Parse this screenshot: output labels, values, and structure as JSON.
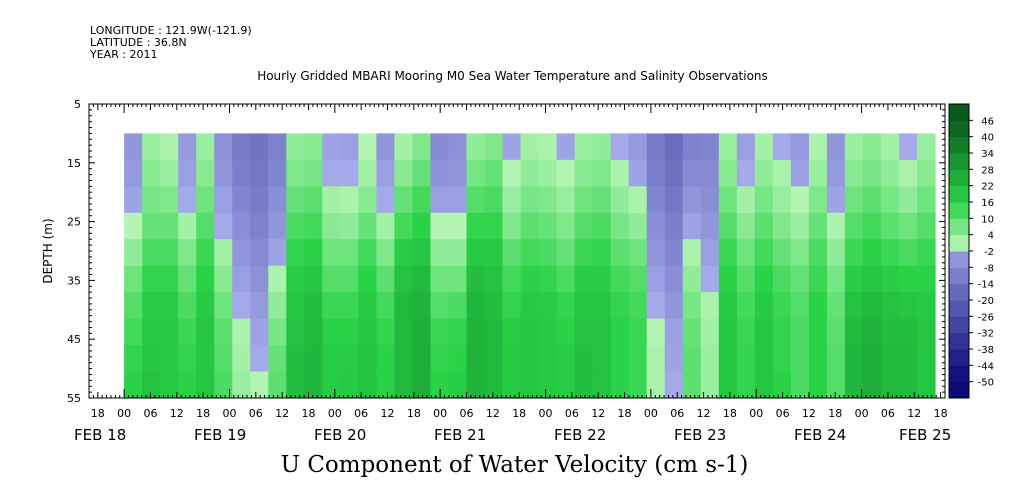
{
  "header": {
    "longitude": "LONGITUDE : 121.9W(-121.9)",
    "latitude": "LATITUDE : 36.8N",
    "year": "YEAR : 2011"
  },
  "chart_data": {
    "type": "heatmap",
    "title": "Hourly Gridded MBARI Mooring M0 Sea Water Temperature and Salinity Observations",
    "xlabel": "U Component of Water Velocity (cm s-1)",
    "ylabel": "DEPTH (m)",
    "y_range": [
      5,
      55
    ],
    "y_inverted": true,
    "y_ticks": [
      5,
      15,
      25,
      35,
      45,
      55
    ],
    "data_depth_range": [
      10,
      55
    ],
    "x_range": [
      "2011-02-17T16:00",
      "2011-02-25T19:00"
    ],
    "x_hour_ticks": [
      "18",
      "00",
      "06",
      "12",
      "18",
      "00",
      "06",
      "12",
      "18",
      "00",
      "06",
      "12",
      "18",
      "00",
      "06",
      "12",
      "18",
      "00",
      "06",
      "12",
      "18",
      "00",
      "06",
      "12",
      "18",
      "00",
      "06",
      "12",
      "18",
      "00",
      "06",
      "12",
      "18"
    ],
    "x_date_labels": [
      "FEB 18",
      "FEB 19",
      "FEB 20",
      "FEB 21",
      "FEB 22",
      "FEB 23",
      "FEB 24",
      "FEB 25"
    ],
    "colorbar": {
      "levels": [
        -50,
        -44,
        -38,
        -32,
        -26,
        -20,
        -14,
        -8,
        -2,
        4,
        10,
        16,
        22,
        28,
        34,
        40,
        46
      ],
      "colors": {
        "negative_strong": "#0a0a78",
        "negative_weak": "#aab0ee",
        "positive_weak": "#b4f5b4",
        "positive_strong": "#0a5a1e"
      }
    },
    "grid": false,
    "legend": "right colorbar",
    "profile_columns": [
      [
        -5,
        -4,
        -2,
        0,
        4,
        8,
        11,
        13,
        15,
        16
      ],
      [
        3,
        5,
        7,
        9,
        12,
        15,
        17,
        18,
        19,
        20
      ],
      [
        1,
        3,
        6,
        9,
        12,
        15,
        17,
        18,
        18,
        18
      ],
      [
        -4,
        -3,
        -1,
        2,
        6,
        9,
        12,
        14,
        15,
        16
      ],
      [
        3,
        5,
        8,
        11,
        14,
        16,
        18,
        19,
        19,
        19
      ],
      [
        -6,
        -5,
        -3,
        -1,
        2,
        5,
        8,
        10,
        11,
        12
      ],
      [
        -12,
        -11,
        -9,
        -7,
        -5,
        -3,
        -1,
        1,
        2,
        3
      ],
      [
        -14,
        -13,
        -12,
        -10,
        -8,
        -6,
        -4,
        -2,
        -1,
        0
      ],
      [
        -10,
        -9,
        -7,
        -5,
        -2,
        1,
        4,
        7,
        9,
        10
      ],
      [
        4,
        6,
        9,
        12,
        15,
        17,
        19,
        20,
        21,
        21
      ],
      [
        5,
        7,
        10,
        13,
        16,
        19,
        21,
        22,
        23,
        23
      ],
      [
        -2,
        -1,
        2,
        5,
        8,
        11,
        14,
        16,
        17,
        17
      ],
      [
        -3,
        -1,
        1,
        4,
        8,
        11,
        14,
        16,
        17,
        18
      ],
      [
        0,
        2,
        5,
        9,
        13,
        16,
        18,
        19,
        20,
        20
      ],
      [
        -5,
        -3,
        -1,
        2,
        6,
        10,
        13,
        15,
        16,
        16
      ],
      [
        2,
        5,
        9,
        13,
        17,
        20,
        22,
        22,
        22,
        22
      ],
      [
        6,
        9,
        13,
        16,
        19,
        22,
        24,
        25,
        25,
        25
      ],
      [
        -8,
        -6,
        -3,
        0,
        4,
        8,
        11,
        14,
        15,
        16
      ],
      [
        -6,
        -5,
        -3,
        0,
        4,
        8,
        12,
        15,
        16,
        17
      ],
      [
        4,
        7,
        11,
        15,
        18,
        21,
        23,
        24,
        24,
        24
      ],
      [
        6,
        9,
        12,
        15,
        18,
        20,
        21,
        22,
        22,
        22
      ],
      [
        -2,
        0,
        3,
        6,
        10,
        13,
        15,
        17,
        18,
        18
      ],
      [
        2,
        4,
        7,
        10,
        13,
        16,
        18,
        19,
        19,
        19
      ],
      [
        1,
        3,
        6,
        9,
        12,
        15,
        17,
        18,
        18,
        18
      ],
      [
        -2,
        0,
        3,
        6,
        9,
        12,
        15,
        16,
        17,
        17
      ],
      [
        3,
        5,
        8,
        11,
        14,
        17,
        19,
        20,
        21,
        21
      ],
      [
        4,
        6,
        9,
        12,
        15,
        17,
        19,
        20,
        20,
        20
      ],
      [
        -1,
        1,
        4,
        7,
        10,
        13,
        15,
        16,
        16,
        16
      ],
      [
        -4,
        -2,
        1,
        4,
        8,
        11,
        13,
        14,
        14,
        14
      ],
      [
        -12,
        -11,
        -9,
        -7,
        -5,
        -3,
        -1,
        0,
        1,
        1
      ],
      [
        -16,
        -15,
        -13,
        -11,
        -9,
        -7,
        -5,
        -3,
        -2,
        -1
      ],
      [
        -10,
        -8,
        -5,
        -2,
        1,
        4,
        7,
        9,
        10,
        10
      ],
      [
        -9,
        -8,
        -7,
        -5,
        -3,
        -1,
        1,
        2,
        3,
        3
      ],
      [
        3,
        5,
        8,
        11,
        14,
        16,
        18,
        19,
        19,
        19
      ],
      [
        -3,
        -1,
        2,
        5,
        8,
        11,
        13,
        14,
        15,
        15
      ],
      [
        2,
        4,
        7,
        10,
        13,
        16,
        18,
        19,
        19,
        19
      ],
      [
        -1,
        1,
        3,
        6,
        9,
        12,
        14,
        15,
        15,
        16
      ],
      [
        -4,
        -3,
        0,
        3,
        6,
        9,
        11,
        12,
        12,
        12
      ],
      [
        1,
        3,
        6,
        9,
        12,
        14,
        16,
        16,
        16,
        16
      ],
      [
        -5,
        -4,
        -2,
        1,
        4,
        7,
        9,
        10,
        11,
        11
      ],
      [
        3,
        5,
        8,
        11,
        14,
        17,
        20,
        22,
        23,
        23
      ],
      [
        5,
        7,
        10,
        13,
        16,
        19,
        22,
        24,
        25,
        25
      ],
      [
        2,
        4,
        7,
        10,
        14,
        17,
        20,
        21,
        22,
        22
      ],
      [
        -1,
        1,
        4,
        8,
        12,
        16,
        19,
        21,
        22,
        22
      ],
      [
        3,
        5,
        8,
        11,
        14,
        16,
        18,
        19,
        19,
        19
      ]
    ]
  }
}
